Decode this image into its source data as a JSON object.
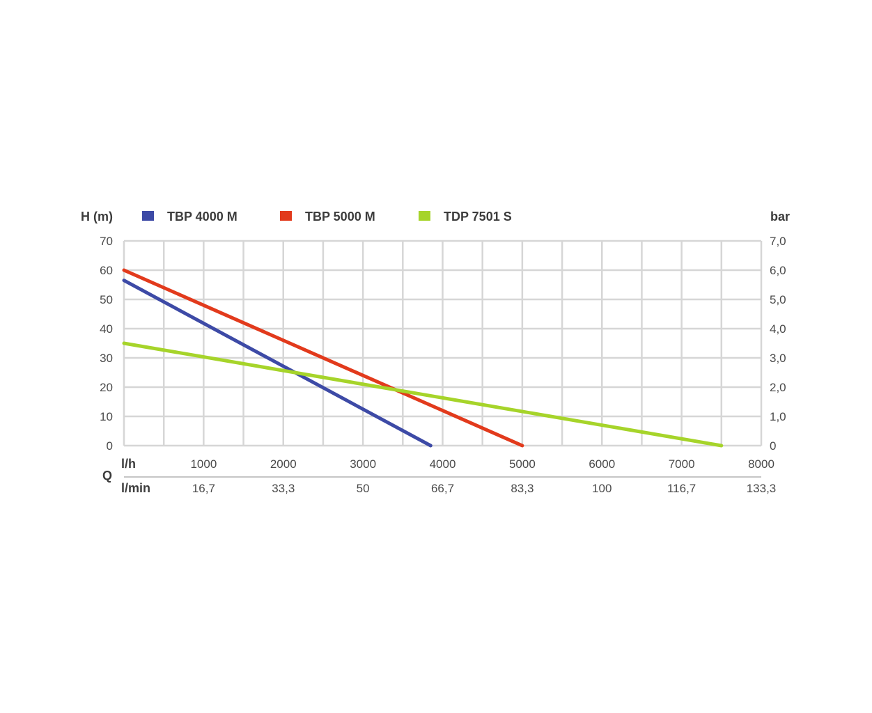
{
  "chart_data": {
    "type": "line",
    "y_left_label": "H (m)",
    "y_right_label": "bar",
    "q_label": "Q",
    "x_unit_lh": "l/h",
    "x_unit_lmin": "l/min",
    "xlim": [
      0,
      8000
    ],
    "ylim": [
      0,
      70
    ],
    "grid": true,
    "legend_position": "top",
    "x_ticks": [
      {
        "value": 1000,
        "lh": "1000",
        "lmin": "16,7"
      },
      {
        "value": 2000,
        "lh": "2000",
        "lmin": "33,3"
      },
      {
        "value": 3000,
        "lh": "3000",
        "lmin": "50"
      },
      {
        "value": 4000,
        "lh": "4000",
        "lmin": "66,7"
      },
      {
        "value": 5000,
        "lh": "5000",
        "lmin": "83,3"
      },
      {
        "value": 6000,
        "lh": "6000",
        "lmin": "100"
      },
      {
        "value": 7000,
        "lh": "7000",
        "lmin": "116,7"
      },
      {
        "value": 8000,
        "lh": "8000",
        "lmin": "133,3"
      }
    ],
    "y_ticks_left": [
      {
        "value": 0,
        "label": "0"
      },
      {
        "value": 10,
        "label": "10"
      },
      {
        "value": 20,
        "label": "20"
      },
      {
        "value": 30,
        "label": "30"
      },
      {
        "value": 40,
        "label": "40"
      },
      {
        "value": 50,
        "label": "50"
      },
      {
        "value": 60,
        "label": "60"
      },
      {
        "value": 70,
        "label": "70"
      }
    ],
    "y_ticks_right": [
      {
        "value": 0,
        "label": "0"
      },
      {
        "value": 10,
        "label": "1,0"
      },
      {
        "value": 20,
        "label": "2,0"
      },
      {
        "value": 30,
        "label": "3,0"
      },
      {
        "value": 40,
        "label": "4,0"
      },
      {
        "value": 50,
        "label": "5,0"
      },
      {
        "value": 60,
        "label": "6,0"
      },
      {
        "value": 70,
        "label": "7,0"
      }
    ],
    "series": [
      {
        "name": "TBP 4000 M",
        "color": "#3d4aa6",
        "points": [
          [
            0,
            56.5
          ],
          [
            3850,
            0
          ]
        ]
      },
      {
        "name": "TBP 5000 M",
        "color": "#e23a1c",
        "points": [
          [
            0,
            60
          ],
          [
            5000,
            0
          ]
        ]
      },
      {
        "name": "TDP 7501 S",
        "color": "#a6d42a",
        "points": [
          [
            0,
            35
          ],
          [
            7500,
            0
          ]
        ]
      }
    ]
  }
}
